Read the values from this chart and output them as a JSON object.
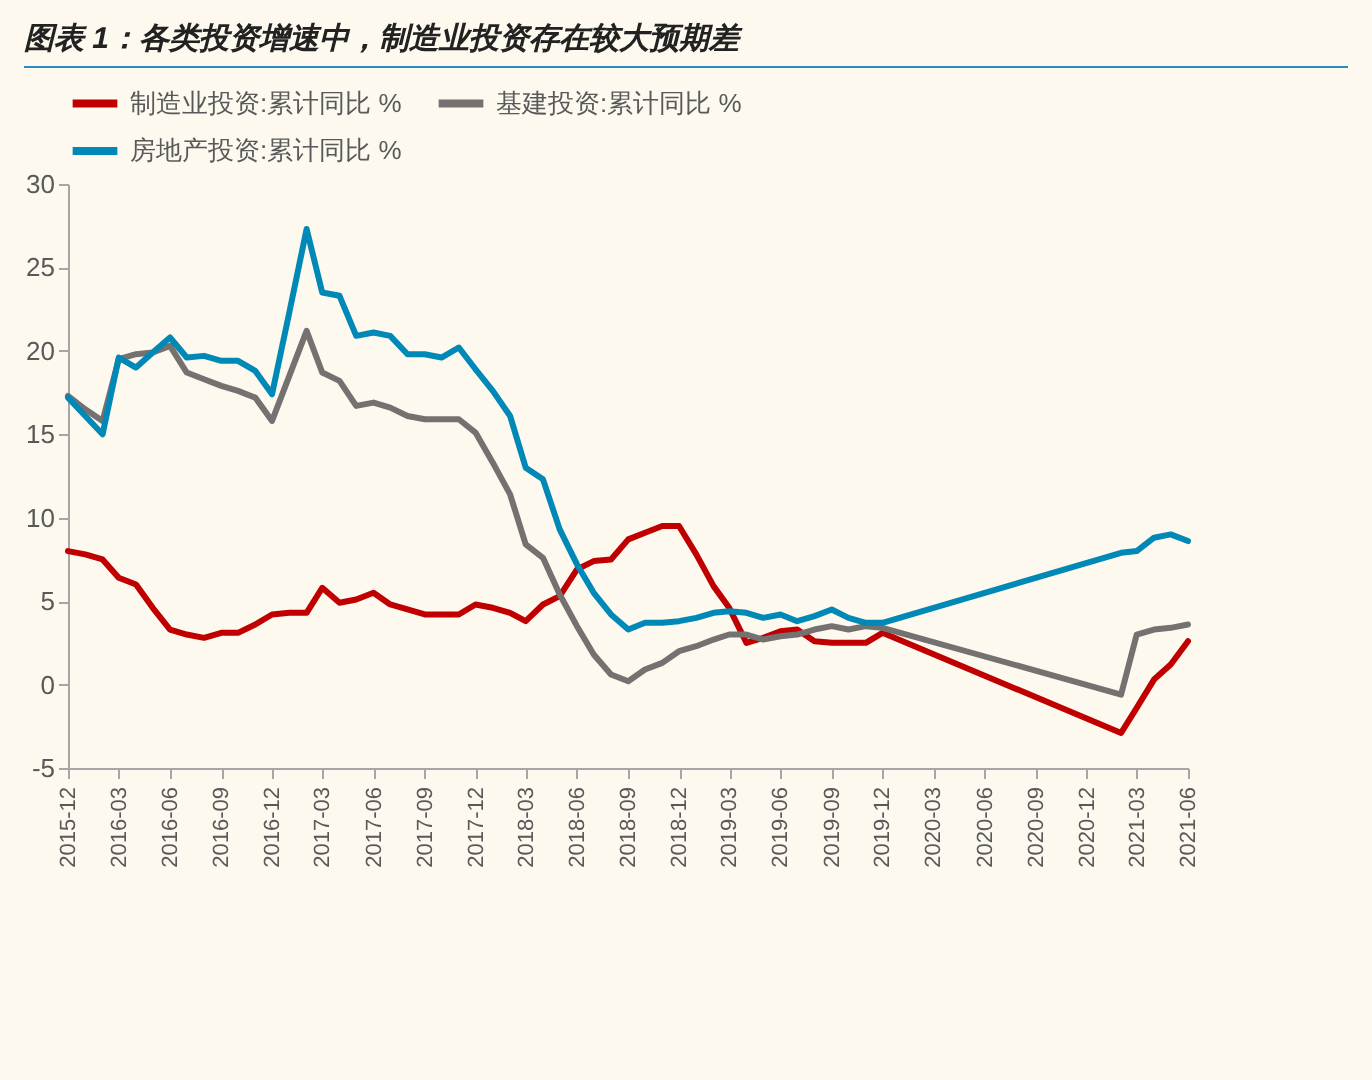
{
  "chart_data": {
    "type": "line",
    "title": "图表 1：各类投资增速中，制造业投资存在较大预期差",
    "x": [
      "2015-12",
      "2016-01",
      "2016-02",
      "2016-03",
      "2016-04",
      "2016-05",
      "2016-06",
      "2016-07",
      "2016-08",
      "2016-09",
      "2016-10",
      "2016-11",
      "2016-12",
      "2017-01",
      "2017-02",
      "2017-03",
      "2017-04",
      "2017-05",
      "2017-06",
      "2017-07",
      "2017-08",
      "2017-09",
      "2017-10",
      "2017-11",
      "2017-12",
      "2018-01",
      "2018-02",
      "2018-03",
      "2018-04",
      "2018-05",
      "2018-06",
      "2018-07",
      "2018-08",
      "2018-09",
      "2018-10",
      "2018-11",
      "2018-12",
      "2019-01",
      "2019-02",
      "2019-03",
      "2019-04",
      "2019-05",
      "2019-06",
      "2019-07",
      "2019-08",
      "2019-09",
      "2019-10",
      "2019-11",
      "2019-12",
      "2021-02",
      "2021-03",
      "2021-04",
      "2021-05",
      "2021-06"
    ],
    "series": [
      {
        "name": "制造业投资:累计同比 %",
        "color": "#c00000",
        "values": [
          8.0,
          7.8,
          7.5,
          6.4,
          6.0,
          4.6,
          3.3,
          3.0,
          2.8,
          3.1,
          3.1,
          3.6,
          4.2,
          4.3,
          4.3,
          5.8,
          4.9,
          5.1,
          5.5,
          4.8,
          4.5,
          4.2,
          4.2,
          4.2,
          4.8,
          4.6,
          4.3,
          3.8,
          4.8,
          5.3,
          6.9,
          7.4,
          7.5,
          8.7,
          9.1,
          9.5,
          9.5,
          7.8,
          5.9,
          4.6,
          2.5,
          2.8,
          3.2,
          3.3,
          2.6,
          2.5,
          2.5,
          2.5,
          3.1,
          -2.9,
          -1.4,
          0.3,
          1.2,
          2.6
        ]
      },
      {
        "name": "基建投资:累计同比 %",
        "color": "#767171",
        "values": [
          17.3,
          16.5,
          15.8,
          19.5,
          19.8,
          19.9,
          20.3,
          18.7,
          18.3,
          17.9,
          17.6,
          17.2,
          15.8,
          18.5,
          21.2,
          18.7,
          18.2,
          16.7,
          16.9,
          16.6,
          16.1,
          15.9,
          15.9,
          15.9,
          15.1,
          13.3,
          11.4,
          8.4,
          7.6,
          5.4,
          3.5,
          1.8,
          0.6,
          0.2,
          0.9,
          1.3,
          2.0,
          2.3,
          2.7,
          3.0,
          3.0,
          2.7,
          2.9,
          3.0,
          3.3,
          3.5,
          3.3,
          3.5,
          3.4,
          -0.6,
          3.0,
          3.3,
          3.4,
          3.6
        ]
      },
      {
        "name": "房地产投资:累计同比 %",
        "color": "#0089b7",
        "values": [
          17.2,
          16.1,
          15.0,
          19.6,
          19.0,
          19.9,
          20.8,
          19.6,
          19.7,
          19.4,
          19.4,
          18.8,
          17.4,
          22.3,
          27.3,
          23.5,
          23.3,
          20.9,
          21.1,
          20.9,
          19.8,
          19.8,
          19.6,
          20.2,
          18.9,
          17.6,
          16.1,
          13.0,
          12.3,
          9.3,
          7.2,
          5.5,
          4.2,
          3.3,
          3.7,
          3.7,
          3.8,
          4.0,
          4.3,
          4.4,
          4.3,
          4.0,
          4.2,
          3.8,
          4.1,
          4.5,
          4.0,
          3.7,
          3.7,
          7.9,
          8.0,
          8.8,
          9.0,
          8.6
        ]
      }
    ],
    "xlim": [
      "2015-12",
      "2021-06"
    ],
    "xticks": [
      "2015-12",
      "2016-03",
      "2016-06",
      "2016-09",
      "2016-12",
      "2017-03",
      "2017-06",
      "2017-09",
      "2017-12",
      "2018-03",
      "2018-06",
      "2018-09",
      "2018-12",
      "2019-03",
      "2019-06",
      "2019-09",
      "2019-12",
      "2020-03",
      "2020-06",
      "2020-09",
      "2020-12",
      "2021-03",
      "2021-06"
    ],
    "ylim": [
      -5,
      30
    ],
    "yticks": [
      -5,
      0,
      5,
      10,
      15,
      20,
      25,
      30
    ],
    "grid": false,
    "legend": "top",
    "line_style": "solid"
  }
}
